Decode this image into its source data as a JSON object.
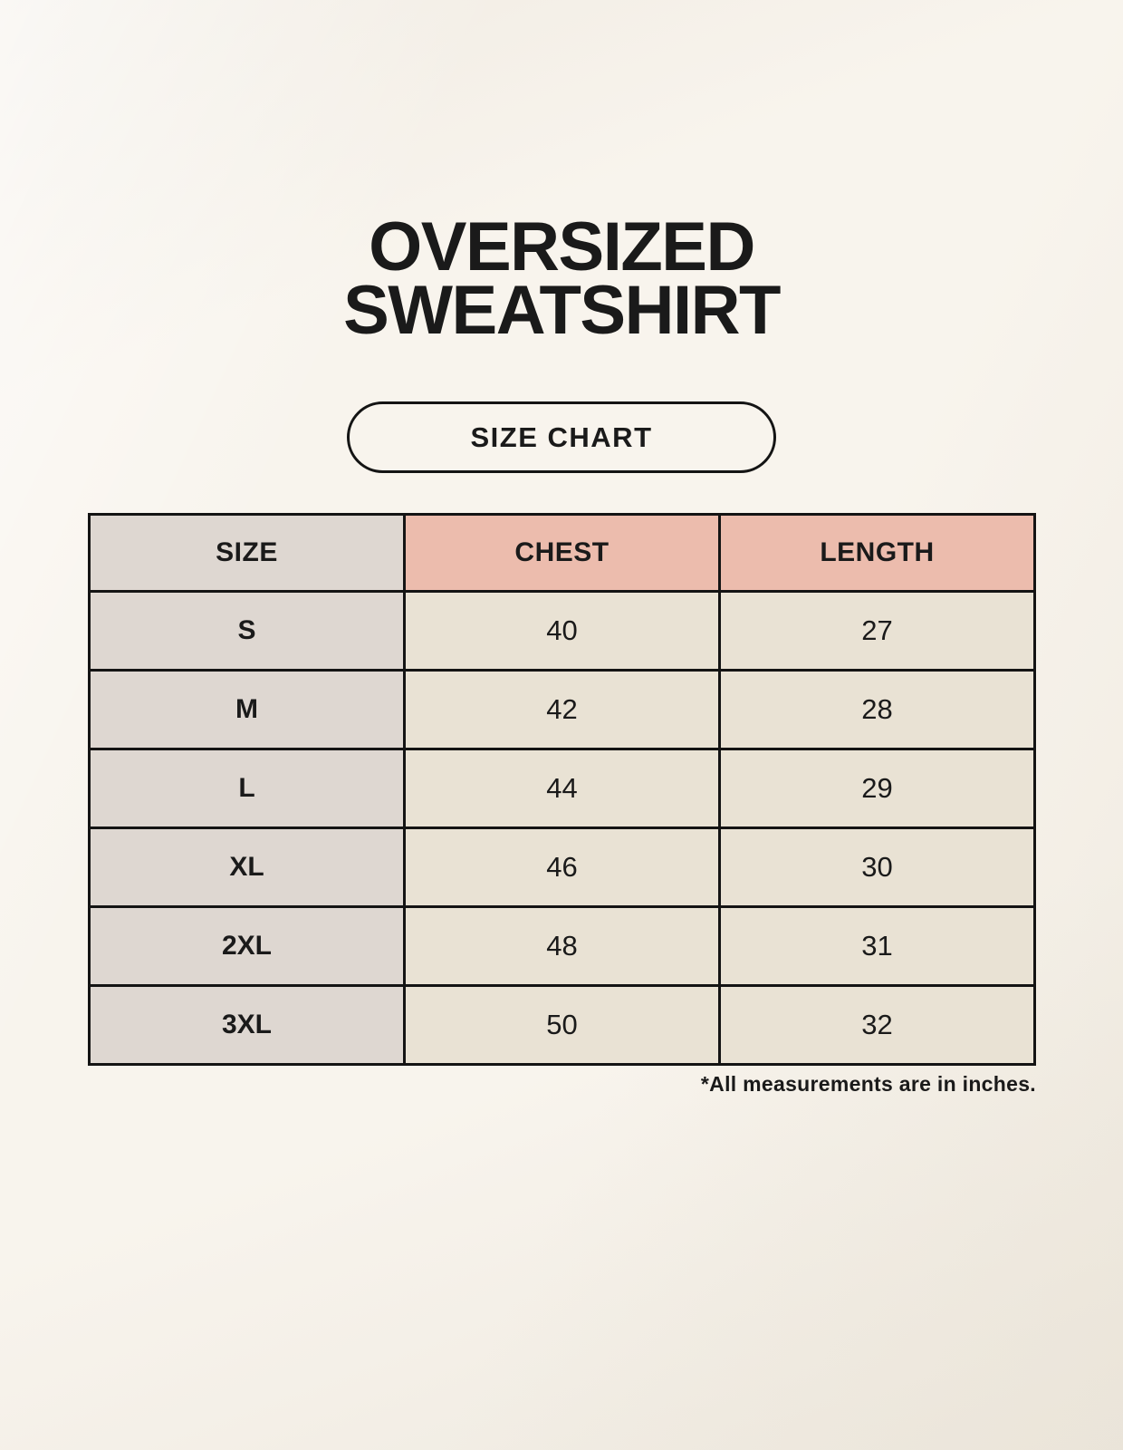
{
  "header": {
    "title_line1": "OVERSIZED",
    "title_line2": "SWEATSHIRT",
    "size_chart_button_label": "SIZE CHART"
  },
  "table": {
    "columns": [
      "SIZE",
      "CHEST",
      "LENGTH"
    ],
    "rows": [
      {
        "size": "S",
        "chest": "40",
        "length": "27"
      },
      {
        "size": "M",
        "chest": "42",
        "length": "28"
      },
      {
        "size": "L",
        "chest": "44",
        "length": "29"
      },
      {
        "size": "XL",
        "chest": "46",
        "length": "30"
      },
      {
        "size": "2XL",
        "chest": "48",
        "length": "31"
      },
      {
        "size": "3XL",
        "chest": "50",
        "length": "32"
      }
    ],
    "footnote": "*All measurements are in inches."
  },
  "chart_data": {
    "type": "table",
    "title": "OVERSIZED SWEATSHIRT",
    "columns": [
      "SIZE",
      "CHEST",
      "LENGTH"
    ],
    "rows": [
      [
        "S",
        40,
        27
      ],
      [
        "M",
        42,
        28
      ],
      [
        "L",
        44,
        29
      ],
      [
        "XL",
        46,
        30
      ],
      [
        "2XL",
        48,
        31
      ],
      [
        "3XL",
        50,
        32
      ]
    ],
    "footnote": "*All measurements are in inches.",
    "units": "inches"
  },
  "colors": {
    "background": "#f8f4ed",
    "header-pink": "#ecbcad",
    "column-gray": "#ded7d1",
    "cell-cream": "#e9e2d4",
    "table-border": "#141414",
    "text": "#1a1a1a"
  }
}
